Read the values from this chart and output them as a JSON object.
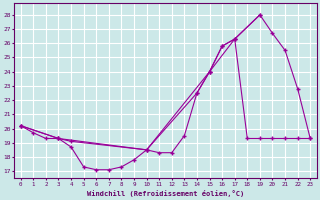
{
  "xlabel": "Windchill (Refroidissement éolien,°C)",
  "background_color": "#cce8e8",
  "grid_color": "#ffffff",
  "line_color": "#990099",
  "xlim": [
    -0.5,
    23.5
  ],
  "ylim": [
    16.5,
    28.8
  ],
  "yticks": [
    17,
    18,
    19,
    20,
    21,
    22,
    23,
    24,
    25,
    26,
    27,
    28
  ],
  "xticks": [
    0,
    1,
    2,
    3,
    4,
    5,
    6,
    7,
    8,
    9,
    10,
    11,
    12,
    13,
    14,
    15,
    16,
    17,
    18,
    19,
    20,
    21,
    22,
    23
  ],
  "series1_x": [
    0,
    1,
    2,
    3,
    4,
    5,
    6,
    7,
    8,
    9,
    10,
    11,
    12,
    13,
    14,
    15,
    16,
    17,
    18,
    19,
    20,
    21,
    22,
    23
  ],
  "series1_y": [
    20.2,
    19.7,
    19.3,
    19.3,
    18.7,
    17.3,
    17.1,
    17.1,
    17.3,
    17.8,
    18.5,
    18.3,
    18.3,
    19.5,
    22.5,
    24.0,
    25.8,
    26.3,
    19.3,
    19.3,
    19.3,
    19.3,
    19.3,
    19.3
  ],
  "series2_x": [
    0,
    3,
    4,
    10,
    14,
    15,
    16,
    17,
    19,
    20,
    21,
    22,
    23
  ],
  "series2_y": [
    20.2,
    19.3,
    19.1,
    18.5,
    22.5,
    24.0,
    25.8,
    26.3,
    28.0,
    26.7,
    25.5,
    22.8,
    19.3
  ],
  "series3_x": [
    0,
    3,
    10,
    15,
    17,
    19
  ],
  "series3_y": [
    20.2,
    19.3,
    18.5,
    24.0,
    26.3,
    28.0
  ]
}
